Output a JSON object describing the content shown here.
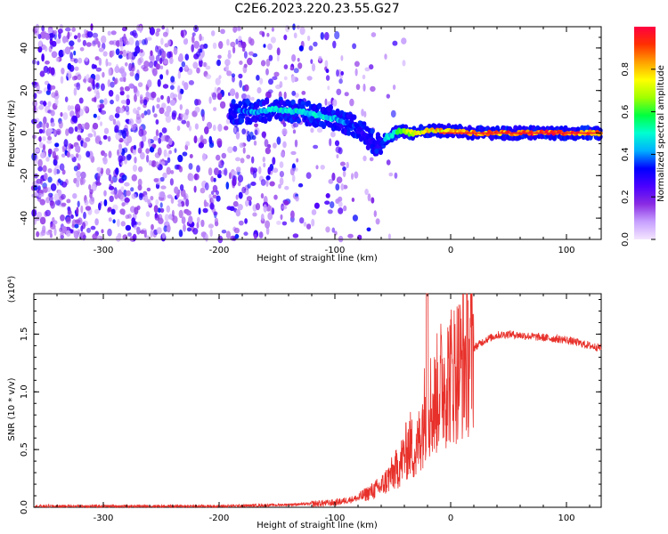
{
  "title": "C2E6.2023.220.23.55.G27",
  "chart_data": [
    {
      "type": "heatmap",
      "xlabel": "Height of straight line (km)",
      "ylabel": "Frequency (Hz)",
      "xlim": [
        -360,
        130
      ],
      "ylim": [
        -50,
        50
      ],
      "x_ticks": [
        "-300",
        "-200",
        "-100",
        "0",
        "100"
      ],
      "y_ticks": [
        "-40",
        "-20",
        "0",
        "20",
        "40"
      ],
      "colorbar": {
        "label": "Normalized spectral amplitude",
        "ticks": [
          "0.0",
          "0.2",
          "0.4",
          "0.6",
          "0.8"
        ],
        "range": [
          0,
          1
        ],
        "colors": [
          "#f4e6ff",
          "#c7a0ff",
          "#8a2be2",
          "#4b00ff",
          "#0000ff",
          "#00b0ff",
          "#00ffd0",
          "#00ff40",
          "#a0ff00",
          "#ffff00",
          "#ffa000",
          "#ff3000",
          "#ff0040"
        ]
      },
      "ridge": {
        "x": [
          -190,
          -170,
          -150,
          -130,
          -110,
          -95,
          -80,
          -70,
          -62,
          -55,
          -45,
          -35,
          -20,
          0,
          20,
          60,
          100,
          130
        ],
        "y": [
          10,
          10,
          11,
          10,
          8,
          6,
          3,
          -3,
          -6,
          -2,
          1,
          0,
          1,
          1,
          0,
          0,
          0,
          0
        ],
        "amplitude": [
          0.35,
          0.45,
          0.5,
          0.5,
          0.5,
          0.45,
          0.35,
          0.3,
          0.35,
          0.45,
          0.6,
          0.75,
          0.8,
          0.85,
          0.9,
          0.95,
          0.95,
          0.95
        ]
      },
      "noise_region_x": [
        -360,
        -70
      ]
    },
    {
      "type": "line",
      "xlabel": "Height of straight line (km)",
      "ylabel": "SNR (10 * v/v)",
      "scale_label": "(x10⁴)",
      "xlim": [
        -360,
        130
      ],
      "ylim": [
        0,
        1.85
      ],
      "x_ticks": [
        "-300",
        "-200",
        "-100",
        "0",
        "100"
      ],
      "y_ticks": [
        "0.0",
        "0.5",
        "1.0",
        "1.5"
      ],
      "series": [
        {
          "color": "#e8302a",
          "x": [
            -360,
            -300,
            -250,
            -200,
            -150,
            -120,
            -100,
            -80,
            -60,
            -45,
            -35,
            -30,
            -25,
            -20,
            -15,
            -10,
            0,
            10,
            20,
            30,
            40,
            50,
            60,
            80,
            100,
            120,
            130
          ],
          "y": [
            0.01,
            0.01,
            0.01,
            0.01,
            0.02,
            0.03,
            0.04,
            0.08,
            0.18,
            0.35,
            0.55,
            0.45,
            0.7,
            0.95,
            0.85,
            1.05,
            1.15,
            1.25,
            1.38,
            1.45,
            1.49,
            1.5,
            1.49,
            1.47,
            1.45,
            1.4,
            1.38
          ],
          "spike": {
            "x": -20,
            "y": 1.85
          }
        }
      ]
    }
  ]
}
